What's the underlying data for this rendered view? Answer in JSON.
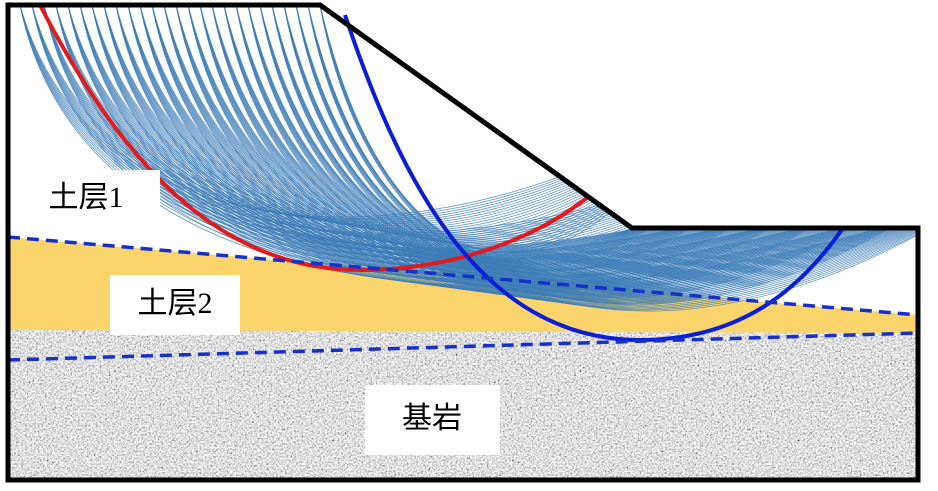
{
  "labels": {
    "soil_layer_1": "土层1",
    "soil_layer_2": "土层2",
    "bedrock": "基岩"
  }
}
